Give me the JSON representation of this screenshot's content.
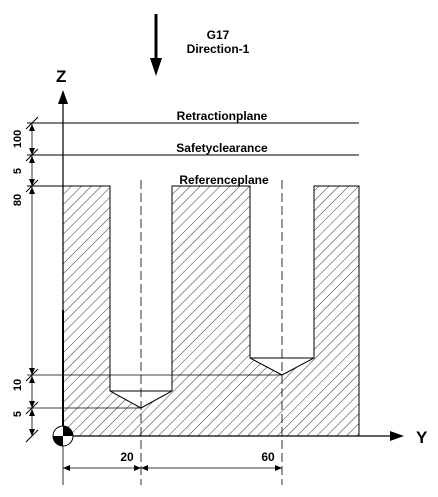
{
  "header": {
    "plane": "G17",
    "direction": "Direction-1"
  },
  "axes": {
    "z": "Z",
    "y": "Y"
  },
  "planes": {
    "retraction": "Retractionplane",
    "safety": "Safetyclearance",
    "reference": "Referenceplane"
  },
  "z_dims": [
    "100",
    "5",
    "80",
    "10",
    "5"
  ],
  "y_dims": [
    "20",
    "60"
  ],
  "colors": {
    "line": "#000000",
    "background": "#ffffff"
  },
  "icons": [
    "arrow-down-icon",
    "origin-marker-icon"
  ]
}
